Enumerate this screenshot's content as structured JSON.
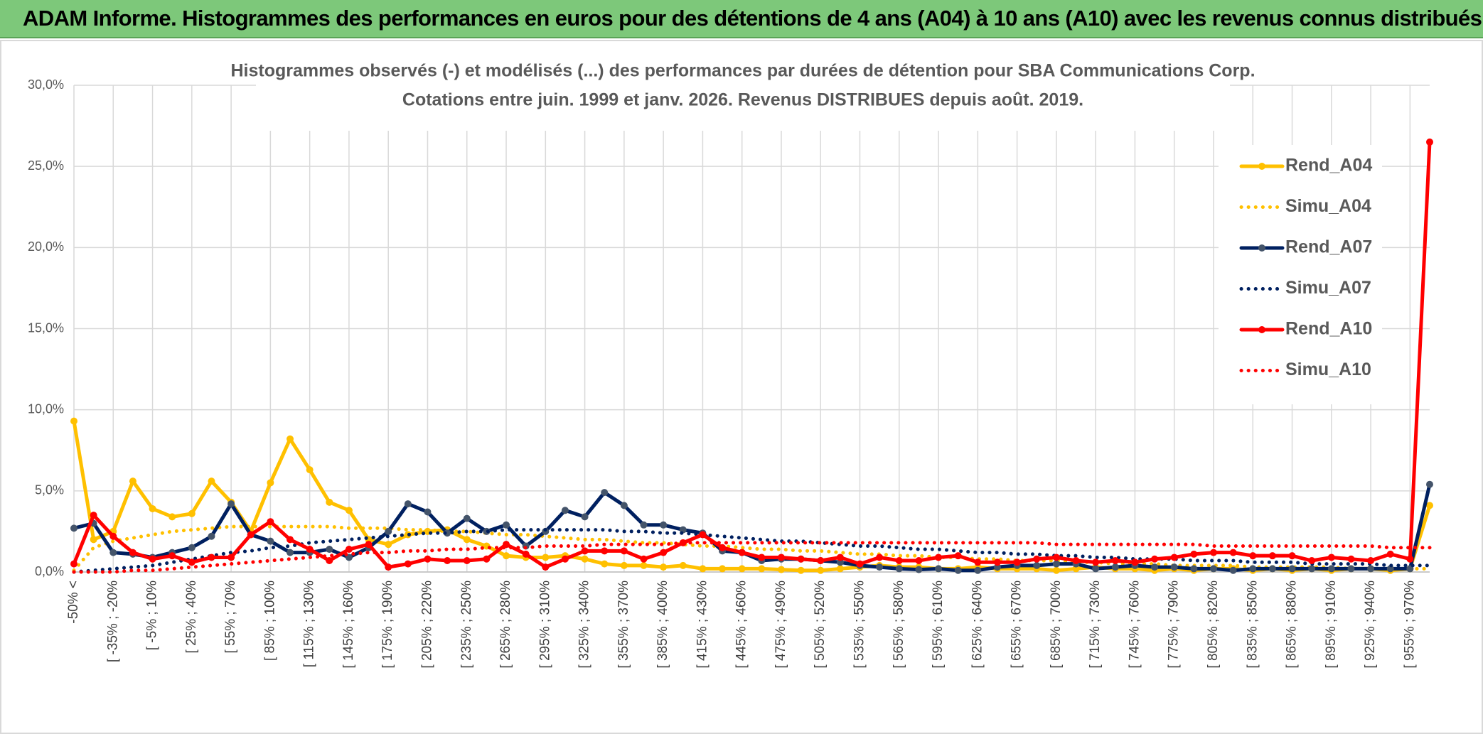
{
  "header": {
    "title": "ADAM Informe. Histogrammes des performances en euros pour des détentions de 4 ans (A04) à 10 ans (A10) avec les revenus connus distribués"
  },
  "chart_data": {
    "type": "line",
    "title": "Histogrammes observés (-) et modélisés (...) des performances par durées de détention pour SBA Communications Corp.",
    "subtitle": "Cotations entre juin. 1999 et janv. 2026. Revenus DISTRIBUES depuis août. 2019.",
    "categories": [
      "-50% <",
      null,
      "[ -35% ; -20%",
      null,
      "[ -5% ; 10%",
      null,
      "[ 25% ; 40%",
      null,
      "[ 55% ; 70%",
      null,
      "[ 85% ; 100%",
      null,
      "[ 115% ; 130%",
      null,
      "[ 145% ; 160%",
      null,
      "[ 175% ; 190%",
      null,
      "[ 205% ; 220%",
      null,
      "[ 235% ; 250%",
      null,
      "[ 265% ; 280%",
      null,
      "[ 295% ; 310%",
      null,
      "[ 325% ; 340%",
      null,
      "[ 355% ; 370%",
      null,
      "[ 385% ; 400%",
      null,
      "[ 415% ; 430%",
      null,
      "[ 445% ; 460%",
      null,
      "[ 475% ; 490%",
      null,
      "[ 505% ; 520%",
      null,
      "[ 535% ; 550%",
      null,
      "[ 565% ; 580%",
      null,
      "[ 595% ; 610%",
      null,
      "[ 625% ; 640%",
      null,
      "[ 655% ; 670%",
      null,
      "[ 685% ; 700%",
      null,
      "[ 715% ; 730%",
      null,
      "[ 745% ; 760%",
      null,
      "[ 775% ; 790%",
      null,
      "[ 805% ; 820%",
      null,
      "[ 835% ; 850%",
      null,
      "[ 865% ; 880%",
      null,
      "[ 895% ; 910%",
      null,
      "[ 925% ; 940%",
      null,
      "[ 955% ; 970%",
      null
    ],
    "series": [
      {
        "name": "Rend_A04",
        "color": "#ffc000",
        "marker_color": "#ffc000",
        "line_style": "solid",
        "markers": true,
        "values": [
          9.3,
          2.0,
          2.5,
          5.6,
          3.9,
          3.4,
          3.6,
          5.6,
          4.3,
          2.5,
          5.5,
          8.2,
          6.3,
          4.3,
          3.8,
          2.0,
          1.7,
          2.3,
          2.5,
          2.6,
          2.0,
          1.6,
          1.0,
          0.9,
          0.9,
          1.0,
          0.8,
          0.5,
          0.4,
          0.4,
          0.3,
          0.4,
          0.2,
          0.2,
          0.2,
          0.2,
          0.15,
          0.1,
          0.1,
          0.2,
          0.3,
          0.4,
          0.3,
          0.3,
          0.2,
          0.2,
          0.3,
          0.2,
          0.2,
          0.2,
          0.1,
          0.2,
          0.3,
          0.2,
          0.2,
          0.1,
          0.2,
          0.1,
          0.2,
          0.2,
          0.1,
          0.2,
          0.1,
          0.2,
          0.1,
          0.2,
          0.2,
          0.1,
          0.2,
          4.1
        ]
      },
      {
        "name": "Simu_A04",
        "color": "#ffc000",
        "line_style": "dotted",
        "markers": false,
        "values": [
          0.1,
          1.5,
          1.9,
          2.1,
          2.3,
          2.5,
          2.6,
          2.7,
          2.8,
          2.8,
          2.8,
          2.8,
          2.8,
          2.8,
          2.7,
          2.7,
          2.7,
          2.6,
          2.6,
          2.5,
          2.5,
          2.4,
          2.3,
          2.3,
          2.2,
          2.1,
          2.0,
          2.0,
          1.9,
          1.8,
          1.8,
          1.7,
          1.6,
          1.6,
          1.5,
          1.4,
          1.4,
          1.3,
          1.3,
          1.2,
          1.1,
          1.1,
          1.0,
          1.0,
          0.9,
          0.9,
          0.8,
          0.8,
          0.7,
          0.7,
          0.7,
          0.6,
          0.6,
          0.5,
          0.5,
          0.5,
          0.4,
          0.4,
          0.4,
          0.4,
          0.3,
          0.3,
          0.3,
          0.3,
          0.3,
          0.2,
          0.2,
          0.2,
          0.2,
          0.2
        ]
      },
      {
        "name": "Rend_A07",
        "color": "#002060",
        "marker_color": "#44546a",
        "line_style": "solid",
        "markers": true,
        "values": [
          2.7,
          3.0,
          1.2,
          1.1,
          0.9,
          1.2,
          1.5,
          2.2,
          4.2,
          2.3,
          1.9,
          1.2,
          1.2,
          1.4,
          0.9,
          1.5,
          2.5,
          4.2,
          3.7,
          2.4,
          3.3,
          2.5,
          2.9,
          1.6,
          2.5,
          3.8,
          3.4,
          4.9,
          4.1,
          2.9,
          2.9,
          2.6,
          2.4,
          1.3,
          1.2,
          0.7,
          0.8,
          0.8,
          0.7,
          0.6,
          0.4,
          0.3,
          0.2,
          0.15,
          0.2,
          0.1,
          0.1,
          0.3,
          0.4,
          0.4,
          0.5,
          0.5,
          0.2,
          0.3,
          0.4,
          0.3,
          0.3,
          0.2,
          0.2,
          0.1,
          0.2,
          0.2,
          0.2,
          0.2,
          0.2,
          0.2,
          0.2,
          0.2,
          0.2,
          5.4
        ]
      },
      {
        "name": "Simu_A07",
        "color": "#002060",
        "line_style": "dotted",
        "markers": false,
        "values": [
          0,
          0.1,
          0.2,
          0.3,
          0.4,
          0.6,
          0.8,
          1.0,
          1.2,
          1.3,
          1.5,
          1.6,
          1.8,
          1.9,
          2.0,
          2.1,
          2.2,
          2.3,
          2.4,
          2.4,
          2.5,
          2.5,
          2.6,
          2.6,
          2.6,
          2.6,
          2.6,
          2.6,
          2.5,
          2.5,
          2.4,
          2.4,
          2.3,
          2.2,
          2.1,
          2.0,
          1.9,
          1.9,
          1.8,
          1.7,
          1.6,
          1.6,
          1.5,
          1.4,
          1.4,
          1.3,
          1.2,
          1.2,
          1.1,
          1.1,
          1.0,
          1.0,
          0.9,
          0.9,
          0.8,
          0.8,
          0.8,
          0.7,
          0.7,
          0.7,
          0.6,
          0.6,
          0.6,
          0.5,
          0.5,
          0.5,
          0.5,
          0.4,
          0.4,
          0.4
        ]
      },
      {
        "name": "Rend_A10",
        "color": "#ff0000",
        "marker_color": "#ff0000",
        "line_style": "solid",
        "markers": true,
        "values": [
          0.5,
          3.5,
          2.2,
          1.2,
          0.8,
          1.0,
          0.6,
          0.9,
          0.9,
          2.3,
          3.1,
          2.0,
          1.4,
          0.7,
          1.4,
          1.7,
          0.3,
          0.5,
          0.8,
          0.7,
          0.7,
          0.8,
          1.7,
          1.1,
          0.3,
          0.8,
          1.3,
          1.3,
          1.3,
          0.8,
          1.2,
          1.8,
          2.3,
          1.5,
          1.2,
          0.9,
          0.9,
          0.8,
          0.7,
          0.9,
          0.5,
          0.9,
          0.7,
          0.7,
          0.9,
          1.0,
          0.6,
          0.6,
          0.6,
          0.8,
          0.9,
          0.7,
          0.6,
          0.7,
          0.6,
          0.8,
          0.9,
          1.1,
          1.2,
          1.2,
          1.0,
          1.0,
          1.0,
          0.7,
          0.9,
          0.8,
          0.7,
          1.1,
          0.8,
          26.5
        ]
      },
      {
        "name": "Simu_A10",
        "color": "#ff0000",
        "line_style": "dotted",
        "markers": false,
        "values": [
          0,
          0,
          0,
          0.1,
          0.1,
          0.2,
          0.3,
          0.4,
          0.5,
          0.6,
          0.7,
          0.8,
          0.9,
          1.0,
          1.1,
          1.2,
          1.2,
          1.3,
          1.3,
          1.4,
          1.4,
          1.5,
          1.5,
          1.5,
          1.6,
          1.6,
          1.6,
          1.7,
          1.7,
          1.7,
          1.7,
          1.8,
          1.8,
          1.8,
          1.8,
          1.8,
          1.8,
          1.8,
          1.8,
          1.8,
          1.8,
          1.8,
          1.8,
          1.8,
          1.8,
          1.8,
          1.8,
          1.8,
          1.8,
          1.8,
          1.7,
          1.7,
          1.7,
          1.7,
          1.7,
          1.7,
          1.7,
          1.7,
          1.6,
          1.6,
          1.6,
          1.6,
          1.6,
          1.6,
          1.6,
          1.6,
          1.6,
          1.5,
          1.5,
          1.5
        ]
      }
    ],
    "ylim": [
      0,
      30
    ],
    "yticks": [
      {
        "value": 0,
        "label": "0,0%"
      },
      {
        "value": 5,
        "label": "5,0%"
      },
      {
        "value": 10,
        "label": "10,0%"
      },
      {
        "value": 15,
        "label": "15,0%"
      },
      {
        "value": 20,
        "label": "20,0%"
      },
      {
        "value": 25,
        "label": "25,0%"
      },
      {
        "value": 30,
        "label": "30,0%"
      }
    ],
    "grid": true,
    "legend": "right"
  }
}
